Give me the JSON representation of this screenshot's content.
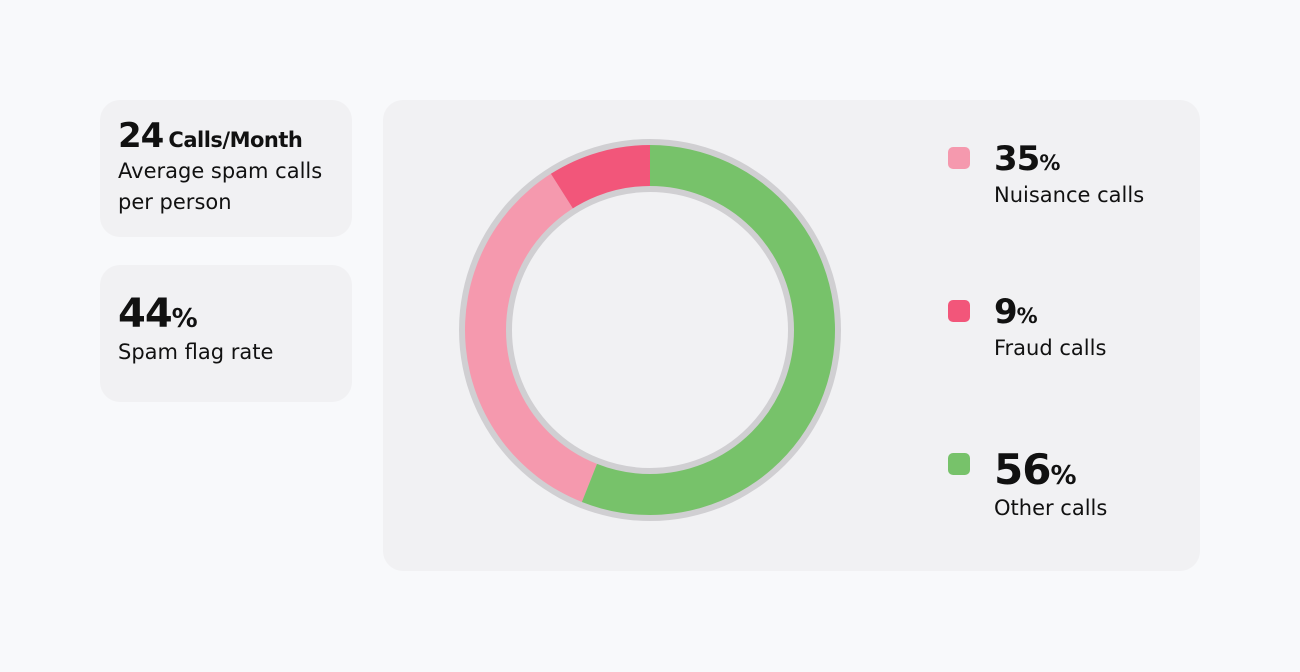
{
  "stats": [
    {
      "value": 24,
      "unit": "Calls/Month",
      "label": "Average spam calls per person"
    },
    {
      "value": 44,
      "unit": "%",
      "label": "Spam flag rate"
    }
  ],
  "chart_data": {
    "type": "pie",
    "categories": [
      "Nuisance calls",
      "Fraud calls",
      "Other calls"
    ],
    "values": [
      35,
      9,
      56
    ],
    "unit": "%",
    "colors": [
      "#f599ae",
      "#f2567a",
      "#77c26a"
    ]
  }
}
